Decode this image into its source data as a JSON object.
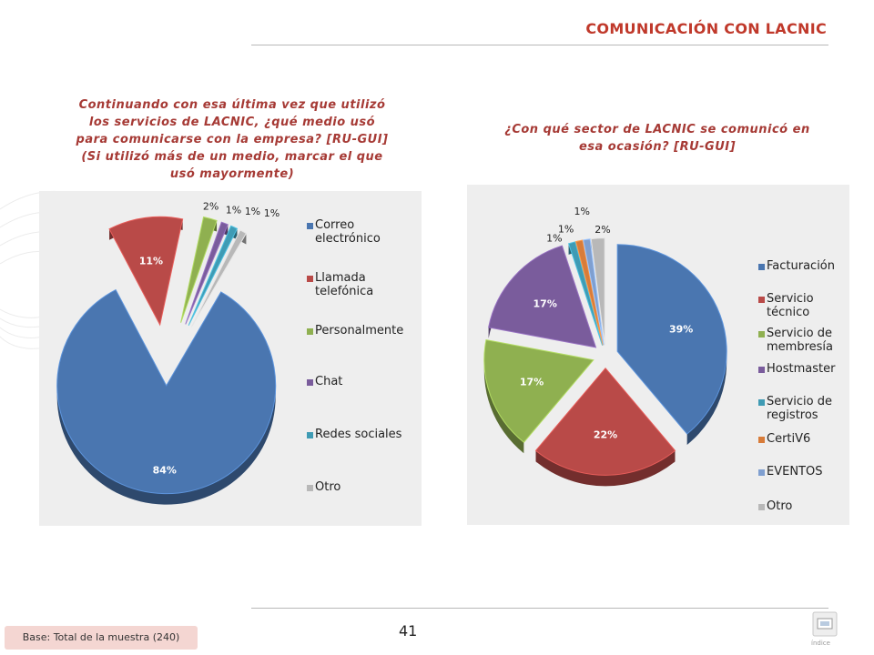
{
  "header": {
    "title": "COMUNICACIÓN CON LACNIC"
  },
  "chart_data": [
    {
      "type": "pie",
      "title": "Continuando con esa última vez que utilizó los servicios de LACNIC, ¿qué medio usó para comunicarse con la empresa? [RU-GUI] (Si utilizó más de un medio, marcar el que usó mayormente)",
      "categories": [
        "Correo electrónico",
        "Llamada telefónica",
        "Personalmente",
        "Chat",
        "Redes sociales",
        "Otro"
      ],
      "values": [
        84,
        11,
        2,
        1,
        1,
        1
      ],
      "labels": [
        "84%",
        "11%",
        "2%",
        "1%",
        "1%",
        "1%"
      ],
      "colors": [
        "#4a76b0",
        "#b94a48",
        "#8fb050",
        "#7a5c9c",
        "#3f9bb4",
        "#b8b8b8"
      ],
      "legend_position": "right"
    },
    {
      "type": "pie",
      "title": "¿Con qué sector de LACNIC se comunicó en esa ocasión? [RU-GUI]",
      "categories": [
        "Facturación",
        "Servicio técnico",
        "Servicio de membresía",
        "Hostmaster",
        "Servicio de registros",
        "CertiV6",
        "EVENTOS",
        "Otro"
      ],
      "values": [
        39,
        22,
        17,
        17,
        1,
        1,
        1,
        2
      ],
      "labels": [
        "39%",
        "22%",
        "17%",
        "17%",
        "1%",
        "1%",
        "1%",
        "2%"
      ],
      "colors": [
        "#4a76b0",
        "#b94a48",
        "#8fb050",
        "#7a5c9c",
        "#3f9bb4",
        "#d87c3a",
        "#7f9fd0",
        "#b8b8b8"
      ],
      "legend_position": "right"
    }
  ],
  "footer": {
    "page_number": "41",
    "base_note": "Base: Total de la muestra (240)",
    "index_label": "índice",
    "index_icon": "index-icon"
  }
}
